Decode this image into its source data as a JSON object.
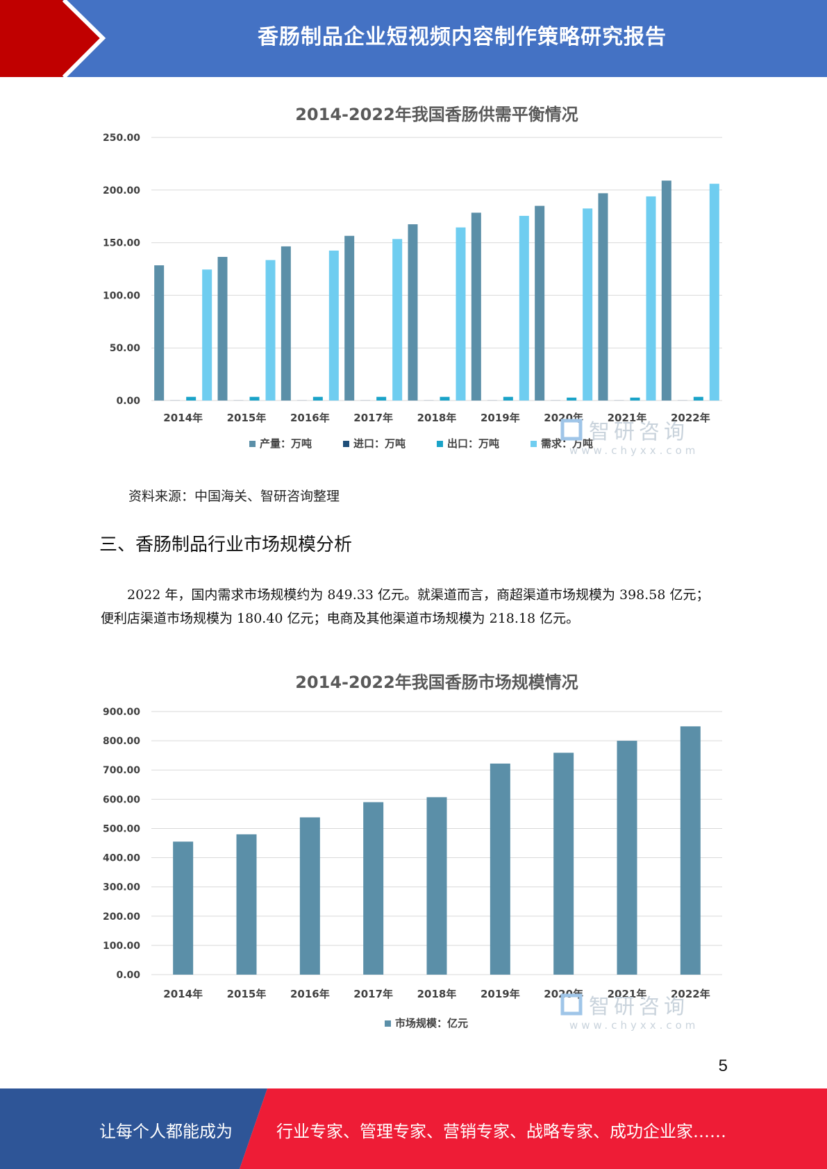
{
  "header": {
    "title": "香肠制品企业短视频内容制作策略研究报告",
    "accent_color": "#c00000",
    "bar_color": "#4472c4"
  },
  "chart_data": [
    {
      "type": "bar",
      "title": "2014-2022年我国香肠供需平衡情况",
      "categories": [
        "2014年",
        "2015年",
        "2016年",
        "2017年",
        "2018年",
        "2019年",
        "2020年",
        "2021年",
        "2022年"
      ],
      "series": [
        {
          "name": "产量：万吨",
          "color": "#5b8fa8",
          "values": [
            128.5,
            136.5,
            146.5,
            156.5,
            167.5,
            178.5,
            185.0,
            197.0,
            209.0
          ]
        },
        {
          "name": "进口：万吨",
          "color": "#1f4e79",
          "values": [
            0.1,
            0.1,
            0.1,
            0.1,
            0.1,
            0.1,
            0.1,
            0.1,
            0.1
          ]
        },
        {
          "name": "出口：万吨",
          "color": "#1aa3c8",
          "values": [
            3.5,
            3.5,
            3.5,
            3.5,
            3.5,
            3.5,
            2.8,
            2.8,
            3.5
          ]
        },
        {
          "name": "需求：万吨",
          "color": "#6fcdf0",
          "values": [
            124.5,
            133.5,
            142.5,
            153.5,
            164.5,
            175.5,
            182.5,
            194.0,
            206.0
          ]
        }
      ],
      "yticks": [
        "250.00",
        "200.00",
        "150.00",
        "100.00",
        "50.00",
        "0.00"
      ],
      "ylim": [
        0,
        250
      ],
      "legend_position": "bottom",
      "grid": true
    },
    {
      "type": "bar",
      "title": "2014-2022年我国香肠市场规模情况",
      "categories": [
        "2014年",
        "2015年",
        "2016年",
        "2017年",
        "2018年",
        "2019年",
        "2020年",
        "2021年",
        "2022年"
      ],
      "series": [
        {
          "name": "市场规模：亿元",
          "color": "#5b8fa8",
          "values": [
            455,
            480,
            538,
            590,
            607,
            722,
            759,
            800,
            849.33
          ]
        }
      ],
      "yticks": [
        "900.00",
        "800.00",
        "700.00",
        "600.00",
        "500.00",
        "400.00",
        "300.00",
        "200.00",
        "100.00",
        "0.00"
      ],
      "ylim": [
        0,
        900
      ],
      "legend_position": "bottom",
      "grid": true
    }
  ],
  "watermark": {
    "text": "智研咨询",
    "url": "www.chyxx.com"
  },
  "source": "资料来源：中国海关、智研咨询整理",
  "section_heading": "三、香肠制品行业市场规模分析",
  "paragraph": "2022 年，国内需求市场规模约为 849.33 亿元。就渠道而言，商超渠道市场规模为 398.58 亿元；便利店渠道市场规模为 180.40 亿元；电商及其他渠道市场规模为 218.18 亿元。",
  "page_number": "5",
  "footer": {
    "left_text": "让每个人都能成为",
    "right_text": "行业专家、管理专家、营销专家、战略专家、成功企业家……",
    "left_color": "#2e5597",
    "right_color": "#ee1c36"
  }
}
